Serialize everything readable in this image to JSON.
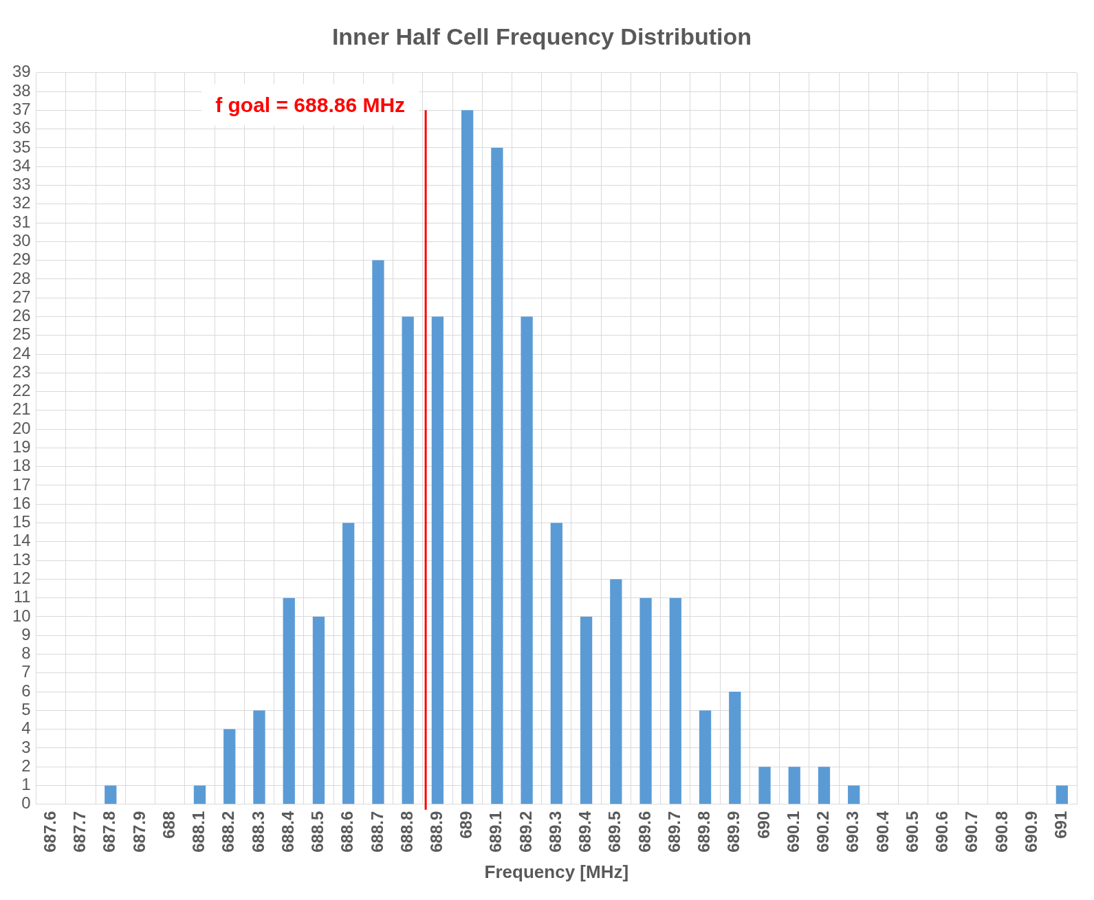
{
  "chart_data": {
    "type": "bar",
    "title": "Inner Half Cell Frequency Distribution",
    "xlabel": "Frequency [MHz]",
    "x": [
      687.6,
      687.7,
      687.8,
      687.9,
      688,
      688.1,
      688.2,
      688.3,
      688.4,
      688.5,
      688.6,
      688.7,
      688.8,
      688.9,
      689,
      689.1,
      689.2,
      689.3,
      689.4,
      689.5,
      689.6,
      689.7,
      689.8,
      689.9,
      690,
      690.1,
      690.2,
      690.3,
      690.4,
      690.5,
      690.6,
      690.7,
      690.8,
      690.9,
      691
    ],
    "values": [
      0,
      0,
      1,
      0,
      0,
      1,
      4,
      5,
      11,
      10,
      15,
      29,
      26,
      26,
      37,
      35,
      26,
      15,
      10,
      12,
      11,
      11,
      5,
      6,
      2,
      2,
      2,
      1,
      0,
      0,
      0,
      0,
      0,
      0,
      1
    ],
    "color": "#5b9bd5",
    "xlim": [
      687.55,
      691.05
    ],
    "xticks": [
      687.6,
      687.7,
      687.8,
      687.9,
      688,
      688.1,
      688.2,
      688.3,
      688.4,
      688.5,
      688.6,
      688.7,
      688.8,
      688.9,
      689,
      689.1,
      689.2,
      689.3,
      689.4,
      689.5,
      689.6,
      689.7,
      689.8,
      689.9,
      690,
      690.1,
      690.2,
      690.3,
      690.4,
      690.5,
      690.6,
      690.7,
      690.8,
      690.9,
      691
    ],
    "ylim": [
      0,
      39
    ],
    "yticks": [
      0,
      1,
      2,
      3,
      4,
      5,
      6,
      7,
      8,
      9,
      10,
      11,
      12,
      13,
      14,
      15,
      16,
      17,
      18,
      19,
      20,
      21,
      22,
      23,
      24,
      25,
      26,
      27,
      28,
      29,
      30,
      31,
      32,
      33,
      34,
      35,
      36,
      37,
      38,
      39
    ],
    "grid": true,
    "ref_lines": [
      {
        "axis": "x",
        "value": 688.86,
        "label": "f goal = 688.86 MHz",
        "color": "#ff0000"
      }
    ]
  }
}
